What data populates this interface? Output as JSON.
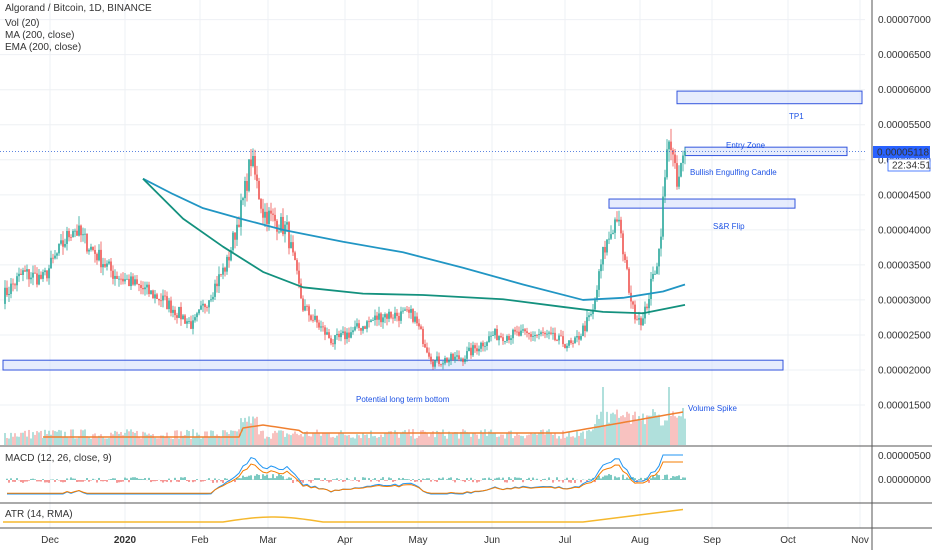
{
  "header": {
    "title": "Algorand / Bitcoin, 1D, BINANCE",
    "indicators": [
      "Vol (20)",
      "MA (200, close)",
      "EMA (200, close)"
    ]
  },
  "panes": {
    "macd_label": "MACD (12, 26, close, 9)",
    "atr_label": "ATR (14, RMA)"
  },
  "price_badge": {
    "price": "0.00005118",
    "countdown": "22:34:51"
  },
  "colors": {
    "up": "#26a69a",
    "down": "#ef5350",
    "ma": "#2196c4",
    "ema": "#13917e",
    "vol_ma": "#f08030",
    "macd": "#2196f3",
    "signal": "#f57c00",
    "atr": "#f5b82e",
    "zone_fill": "#d6dffb",
    "zone_stroke": "#3355dd",
    "annotation": "#1e53e5"
  },
  "chart_data": {
    "type": "candlestick",
    "symbol": "ALGO/BTC",
    "interval": "1D",
    "y_ticks": [
      "0.00007000",
      "0.00006500",
      "0.00006000",
      "0.00005500",
      "0.00005000",
      "0.00004500",
      "0.00004000",
      "0.00003500",
      "0.00003000",
      "0.00002500",
      "0.00002000",
      "0.00001500"
    ],
    "y_range": [
      9.3e-06,
      7.28e-05
    ],
    "x_labels": [
      "Dec",
      "2020",
      "Feb",
      "Mar",
      "Apr",
      "May",
      "Jun",
      "Jul",
      "Aug",
      "Sep",
      "Oct",
      "Nov"
    ],
    "macd_ticks": [
      "0.00000500",
      "0.00000000"
    ],
    "anchors": [
      {
        "day": 0,
        "close": 3.05e-05
      },
      {
        "day": 10,
        "close": 3.38e-05
      },
      {
        "day": 20,
        "close": 3.3e-05
      },
      {
        "day": 35,
        "close": 4.04e-05
      },
      {
        "day": 55,
        "close": 3.38e-05
      },
      {
        "day": 80,
        "close": 3e-05
      },
      {
        "day": 95,
        "close": 2.63e-05
      },
      {
        "day": 112,
        "close": 3.52e-05
      },
      {
        "day": 120,
        "close": 4.41e-05
      },
      {
        "day": 124,
        "close": 5.02e-05
      },
      {
        "day": 130,
        "close": 4.26e-05
      },
      {
        "day": 142,
        "close": 4e-05
      },
      {
        "day": 150,
        "close": 2.9e-05
      },
      {
        "day": 165,
        "close": 2.4e-05
      },
      {
        "day": 190,
        "close": 2.79e-05
      },
      {
        "day": 205,
        "close": 2.78e-05
      },
      {
        "day": 215,
        "close": 2.12e-05
      },
      {
        "day": 230,
        "close": 2.18e-05
      },
      {
        "day": 245,
        "close": 2.5e-05
      },
      {
        "day": 270,
        "close": 2.5e-05
      },
      {
        "day": 285,
        "close": 2.34e-05
      },
      {
        "day": 295,
        "close": 2.82e-05
      },
      {
        "day": 300,
        "close": 3.66e-05
      },
      {
        "day": 307,
        "close": 4.2e-05
      },
      {
        "day": 315,
        "close": 2.85e-05
      },
      {
        "day": 320,
        "close": 2.7e-05
      },
      {
        "day": 328,
        "close": 3.7e-05
      },
      {
        "day": 333,
        "close": 5.4e-05
      },
      {
        "day": 337,
        "close": 4.6e-05
      },
      {
        "day": 341,
        "close": 5.12e-05
      }
    ],
    "ma200": [
      {
        "day": 70,
        "value": 4.73e-05
      },
      {
        "day": 85,
        "value": 4.51e-05
      },
      {
        "day": 100,
        "value": 4.31e-05
      },
      {
        "day": 120,
        "value": 4.15e-05
      },
      {
        "day": 140,
        "value": 4e-05
      },
      {
        "day": 170,
        "value": 3.83e-05
      },
      {
        "day": 200,
        "value": 3.68e-05
      },
      {
        "day": 230,
        "value": 3.46e-05
      },
      {
        "day": 260,
        "value": 3.22e-05
      },
      {
        "day": 290,
        "value": 3e-05
      },
      {
        "day": 310,
        "value": 3.03e-05
      },
      {
        "day": 330,
        "value": 3.12e-05
      },
      {
        "day": 341,
        "value": 3.22e-05
      }
    ],
    "ema200": [
      {
        "day": 70,
        "value": 4.73e-05
      },
      {
        "day": 90,
        "value": 4.16e-05
      },
      {
        "day": 110,
        "value": 3.76e-05
      },
      {
        "day": 130,
        "value": 3.4e-05
      },
      {
        "day": 150,
        "value": 3.18e-05
      },
      {
        "day": 180,
        "value": 3.09e-05
      },
      {
        "day": 210,
        "value": 3.07e-05
      },
      {
        "day": 250,
        "value": 3.01e-05
      },
      {
        "day": 280,
        "value": 2.9e-05
      },
      {
        "day": 300,
        "value": 2.83e-05
      },
      {
        "day": 320,
        "value": 2.81e-05
      },
      {
        "day": 341,
        "value": 2.93e-05
      }
    ],
    "zones": [
      {
        "name": "TP1",
        "from_day": 337,
        "to_day": 430,
        "low": 5.8e-05,
        "high": 5.98e-05,
        "label": "TP1"
      },
      {
        "name": "entry",
        "from_day": 341,
        "to_day": 422,
        "low": 5.06e-05,
        "high": 5.18e-05,
        "label": "Entry Zone"
      },
      {
        "name": "sr_flip",
        "from_day": 303,
        "to_day": 396,
        "low": 4.31e-05,
        "high": 4.44e-05,
        "label": "S&R Flip"
      },
      {
        "name": "long_term_bottom",
        "from_day": 0,
        "to_day": 390,
        "low": 2e-05,
        "high": 2.14e-05,
        "label": "Potential long term bottom"
      }
    ],
    "annotations": [
      "Bullish Engulfing Candle",
      "Volume Spike"
    ],
    "current_price_line": 5.12e-05
  }
}
